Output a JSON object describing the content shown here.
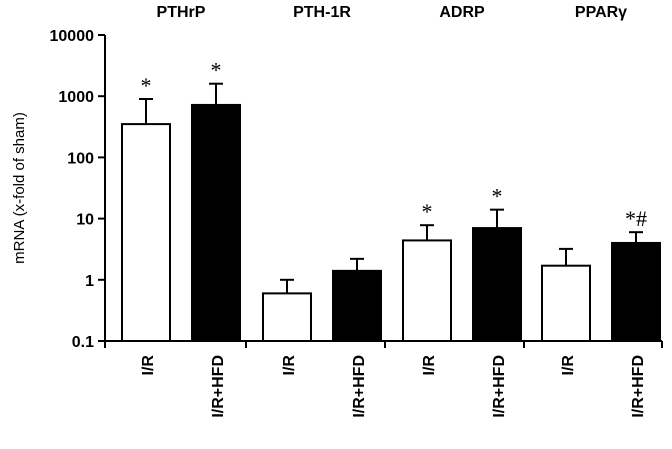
{
  "chart_data": {
    "type": "bar",
    "y_scale": "log",
    "ylim": [
      0.1,
      10000
    ],
    "y_ticks": [
      "0.1",
      "1",
      "10",
      "100",
      "1000",
      "10000"
    ],
    "ylabel": "mRNA (x-fold of sham)",
    "groups": [
      "PTHrP",
      "PTH-1R",
      "ADRP",
      "PPARγ"
    ],
    "series": [
      {
        "name": "I/R",
        "color": "#ffffff",
        "values": [
          350,
          0.6,
          4.4,
          1.7
        ],
        "error_upper": [
          900,
          1.0,
          7.8,
          3.2
        ],
        "significance": [
          "*",
          "",
          "*",
          ""
        ]
      },
      {
        "name": "I/R+HFD",
        "color": "#000000",
        "values": [
          720,
          1.4,
          7.0,
          4.0
        ],
        "error_upper": [
          1600,
          2.2,
          14.0,
          6.0
        ],
        "significance": [
          "*",
          "",
          "*",
          "*#"
        ]
      }
    ],
    "x_tick_labels": [
      "I/R",
      "I/R+HFD",
      "I/R",
      "I/R+HFD",
      "I/R",
      "I/R+HFD",
      "I/R",
      "I/R+HFD"
    ],
    "grid": false
  }
}
